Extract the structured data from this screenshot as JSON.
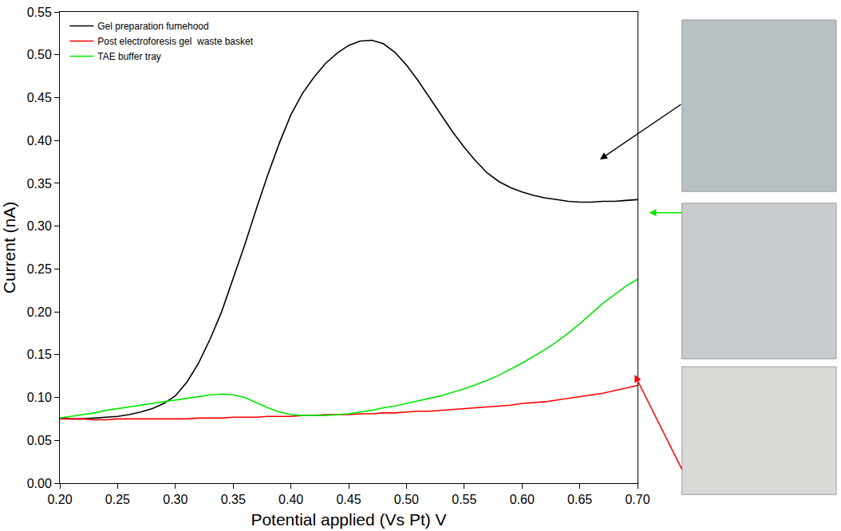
{
  "chart_data": {
    "type": "line",
    "x_label": "Potential applied (Vs Pt) V",
    "y_label": "Current (nA)",
    "x": [
      0.2,
      0.21,
      0.22,
      0.23,
      0.24,
      0.25,
      0.26,
      0.27,
      0.28,
      0.29,
      0.3,
      0.31,
      0.32,
      0.33,
      0.34,
      0.35,
      0.36,
      0.37,
      0.38,
      0.39,
      0.4,
      0.41,
      0.42,
      0.43,
      0.44,
      0.45,
      0.46,
      0.47,
      0.48,
      0.49,
      0.5,
      0.51,
      0.52,
      0.53,
      0.54,
      0.55,
      0.56,
      0.57,
      0.58,
      0.59,
      0.6,
      0.61,
      0.62,
      0.63,
      0.64,
      0.65,
      0.66,
      0.67,
      0.68,
      0.69,
      0.7
    ],
    "series": [
      {
        "name": "Gel preparation fumehood",
        "color": "#000000",
        "values": [
          0.076,
          0.075,
          0.075,
          0.076,
          0.077,
          0.078,
          0.08,
          0.083,
          0.087,
          0.093,
          0.102,
          0.118,
          0.14,
          0.168,
          0.2,
          0.238,
          0.278,
          0.32,
          0.36,
          0.397,
          0.43,
          0.455,
          0.474,
          0.49,
          0.502,
          0.511,
          0.516,
          0.517,
          0.513,
          0.503,
          0.488,
          0.47,
          0.45,
          0.43,
          0.41,
          0.392,
          0.376,
          0.362,
          0.352,
          0.345,
          0.34,
          0.336,
          0.333,
          0.331,
          0.329,
          0.328,
          0.328,
          0.329,
          0.329,
          0.33,
          0.331
        ]
      },
      {
        "name": "Post electroforesis gel  waste basket",
        "color": "#ff0000",
        "values": [
          0.075,
          0.075,
          0.075,
          0.074,
          0.074,
          0.075,
          0.075,
          0.075,
          0.075,
          0.075,
          0.075,
          0.075,
          0.076,
          0.076,
          0.076,
          0.077,
          0.077,
          0.077,
          0.078,
          0.078,
          0.078,
          0.079,
          0.079,
          0.08,
          0.08,
          0.08,
          0.081,
          0.081,
          0.082,
          0.082,
          0.083,
          0.084,
          0.084,
          0.085,
          0.086,
          0.087,
          0.088,
          0.089,
          0.09,
          0.091,
          0.093,
          0.094,
          0.095,
          0.097,
          0.099,
          0.101,
          0.103,
          0.105,
          0.108,
          0.111,
          0.114
        ]
      },
      {
        "name": "TAE buffer tray",
        "color": "#00e600",
        "values": [
          0.076,
          0.078,
          0.08,
          0.082,
          0.085,
          0.087,
          0.089,
          0.091,
          0.093,
          0.095,
          0.097,
          0.099,
          0.101,
          0.103,
          0.104,
          0.103,
          0.1,
          0.094,
          0.088,
          0.083,
          0.08,
          0.079,
          0.079,
          0.079,
          0.08,
          0.081,
          0.083,
          0.085,
          0.088,
          0.09,
          0.093,
          0.096,
          0.099,
          0.102,
          0.106,
          0.11,
          0.115,
          0.12,
          0.126,
          0.133,
          0.14,
          0.148,
          0.156,
          0.165,
          0.175,
          0.186,
          0.198,
          0.21,
          0.22,
          0.23,
          0.238
        ]
      }
    ],
    "xlim": [
      0.2,
      0.7
    ],
    "xticks": [
      {
        "value": 0.2,
        "label": "0.20"
      },
      {
        "value": 0.25,
        "label": "0.25"
      },
      {
        "value": 0.3,
        "label": "0.30"
      },
      {
        "value": 0.35,
        "label": "0.35"
      },
      {
        "value": 0.4,
        "label": "0.40"
      },
      {
        "value": 0.45,
        "label": "0.45"
      },
      {
        "value": 0.5,
        "label": "0.50"
      },
      {
        "value": 0.55,
        "label": "0.55"
      },
      {
        "value": 0.6,
        "label": "0.60"
      },
      {
        "value": 0.65,
        "label": "0.65"
      },
      {
        "value": 0.7,
        "label": "0.70"
      }
    ],
    "ylim": [
      0,
      0.55
    ],
    "yticks": [
      {
        "value": 0,
        "label": "0.00"
      },
      {
        "value": 0.05,
        "label": "0.05"
      },
      {
        "value": 0.1,
        "label": "0.10"
      },
      {
        "value": 0.15,
        "label": "0.15"
      },
      {
        "value": 0.2,
        "label": "0.20"
      },
      {
        "value": 0.25,
        "label": "0.25"
      },
      {
        "value": 0.3,
        "label": "0.30"
      },
      {
        "value": 0.35,
        "label": "0.35"
      },
      {
        "value": 0.4,
        "label": "0.40"
      },
      {
        "value": 0.45,
        "label": "0.45"
      },
      {
        "value": 0.5,
        "label": "0.50"
      },
      {
        "value": 0.55,
        "label": "0.55"
      }
    ],
    "grid": false,
    "legend": "upper left"
  }
}
